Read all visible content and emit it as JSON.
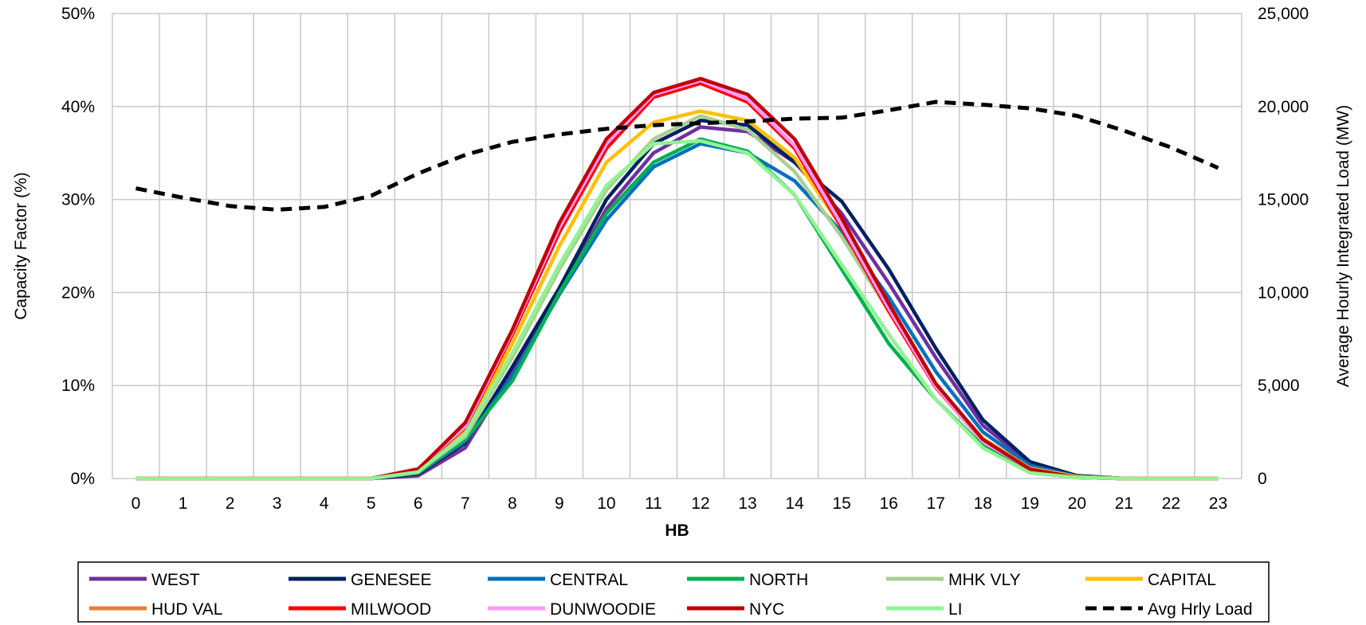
{
  "chart_data": {
    "type": "line",
    "x": [
      0,
      1,
      2,
      3,
      4,
      5,
      6,
      7,
      8,
      9,
      10,
      11,
      12,
      13,
      14,
      15,
      16,
      17,
      18,
      19,
      20,
      21,
      22,
      23
    ],
    "xlabel": "HB",
    "ylabel": "Capacity  Factor (%)",
    "y2label": "Average Hourly Integrated Load (MW)",
    "ylim": [
      0,
      50
    ],
    "y2lim": [
      0,
      25000
    ],
    "yticks": [
      0,
      10,
      20,
      30,
      40,
      50
    ],
    "ytick_labels": [
      "0%",
      "10%",
      "20%",
      "30%",
      "40%",
      "50%"
    ],
    "y2ticks": [
      0,
      5000,
      10000,
      15000,
      20000,
      25000
    ],
    "y2tick_labels": [
      "0",
      "5,000",
      "10,000",
      "15,000",
      "20,000",
      "25,000"
    ],
    "grid": true,
    "legend_position": "bottom",
    "series": [
      {
        "name": "WEST",
        "color": "#7030A0",
        "axis": "left",
        "values": [
          0,
          0,
          0,
          0,
          0,
          0,
          0.3,
          3.3,
          11.5,
          20,
          29,
          35,
          37.8,
          37.3,
          34,
          28.5,
          21,
          13,
          5.7,
          1.6,
          0.3,
          0,
          0,
          0
        ]
      },
      {
        "name": "GENESEE",
        "color": "#002060",
        "axis": "left",
        "values": [
          0,
          0,
          0,
          0,
          0,
          0,
          0.5,
          3.8,
          12,
          20.5,
          30,
          36,
          38.5,
          38,
          34,
          29.8,
          22.5,
          14,
          6.3,
          1.8,
          0.3,
          0,
          0,
          0
        ]
      },
      {
        "name": "CENTRAL",
        "color": "#0070C0",
        "axis": "left",
        "values": [
          0,
          0,
          0,
          0,
          0,
          0,
          0.6,
          4,
          11,
          19.8,
          27.8,
          33.5,
          36,
          35,
          32,
          26.5,
          19.5,
          11.5,
          5,
          1.4,
          0.2,
          0,
          0,
          0
        ]
      },
      {
        "name": "NORTH",
        "color": "#00B050",
        "axis": "left",
        "values": [
          0,
          0,
          0,
          0,
          0,
          0,
          0.6,
          4.2,
          10.5,
          20,
          28.5,
          34,
          36.5,
          35.2,
          30.5,
          22.5,
          14.5,
          8.5,
          3.5,
          0.8,
          0.1,
          0,
          0,
          0
        ]
      },
      {
        "name": "MHK VLY",
        "color": "#A9D08E",
        "axis": "left",
        "values": [
          0,
          0,
          0,
          0,
          0,
          0,
          0.8,
          4.5,
          13,
          22.5,
          31,
          36.5,
          39,
          37.5,
          33,
          26,
          18,
          10,
          4.2,
          1.1,
          0.2,
          0,
          0,
          0
        ]
      },
      {
        "name": "CAPITAL",
        "color": "#FFC000",
        "axis": "left",
        "values": [
          0,
          0,
          0,
          0,
          0,
          0,
          0.9,
          5,
          14.5,
          25,
          34,
          38.3,
          39.5,
          38.5,
          34.5,
          27,
          18.5,
          10,
          4.3,
          1.1,
          0.2,
          0,
          0,
          0
        ]
      },
      {
        "name": "HUD VAL",
        "color": "#ED7D31",
        "axis": "left",
        "values": [
          0,
          0,
          0,
          0,
          0,
          0,
          1,
          5.5,
          15.5,
          26.5,
          35.5,
          41,
          42.5,
          40.5,
          35.5,
          27,
          18,
          9.8,
          4,
          1,
          0.1,
          0,
          0,
          0
        ]
      },
      {
        "name": "MILWOOD",
        "color": "#FF0000",
        "axis": "left",
        "values": [
          0,
          0,
          0,
          0,
          0,
          0,
          1,
          5.5,
          15.5,
          26.5,
          35.5,
          41,
          42.5,
          40.5,
          35.5,
          27,
          18,
          9.8,
          4,
          1,
          0.1,
          0,
          0,
          0
        ]
      },
      {
        "name": "DUNWOODIE",
        "color": "#FF99FF",
        "axis": "left",
        "values": [
          0,
          0,
          0,
          0,
          0,
          0,
          1.1,
          5.6,
          15.8,
          27,
          36,
          41.3,
          42.8,
          40.8,
          35.8,
          27.3,
          18.3,
          9.9,
          4,
          1,
          0.1,
          0,
          0,
          0
        ]
      },
      {
        "name": "NYC",
        "color": "#C00000",
        "axis": "left",
        "values": [
          0,
          0,
          0,
          0,
          0,
          0,
          1,
          6,
          16,
          27.5,
          36.5,
          41.5,
          43,
          41.3,
          36.5,
          28,
          18.8,
          10.2,
          4.2,
          1,
          0.1,
          0,
          0,
          0
        ]
      },
      {
        "name": "LI",
        "color": "#92F294",
        "axis": "left",
        "values": [
          0,
          0,
          0,
          0,
          0,
          0,
          0.7,
          4.8,
          13.5,
          23,
          31.5,
          36,
          36.3,
          35,
          30.5,
          23,
          15.5,
          8.5,
          3.3,
          0.6,
          0.1,
          0,
          0,
          0
        ]
      },
      {
        "name": "Avg Hrly Load",
        "color": "#000000",
        "axis": "right",
        "dashed": true,
        "values": [
          15600,
          15100,
          14650,
          14450,
          14600,
          15200,
          16400,
          17400,
          18100,
          18500,
          18800,
          19000,
          19100,
          19200,
          19350,
          19400,
          19800,
          20250,
          20100,
          19900,
          19500,
          18700,
          17800,
          16700
        ]
      }
    ]
  }
}
